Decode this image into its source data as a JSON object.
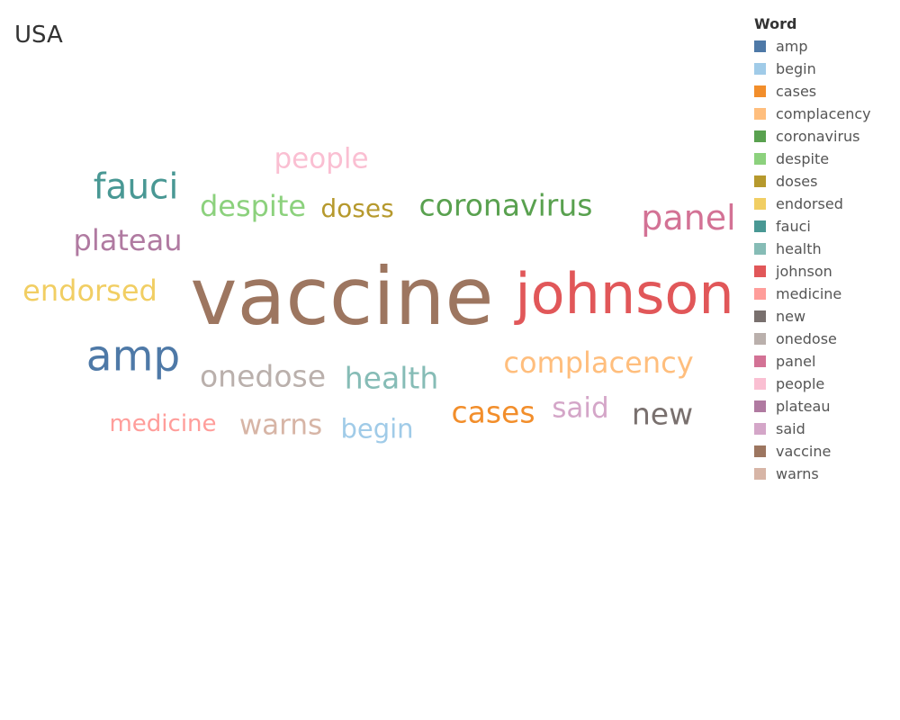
{
  "title": "USA",
  "legend": {
    "title": "Word"
  },
  "chart_data": {
    "type": "wordcloud",
    "title": "USA",
    "legend_title": "Word",
    "legend_placement": "right",
    "words": [
      {
        "text": "amp",
        "weight": 53,
        "color": "#4e79a7"
      },
      {
        "text": "begin",
        "weight": 33,
        "color": "#a0cbe8"
      },
      {
        "text": "cases",
        "weight": 37,
        "color": "#f28e2b"
      },
      {
        "text": "complacency",
        "weight": 36,
        "color": "#ffbe7d"
      },
      {
        "text": "coronavirus",
        "weight": 38,
        "color": "#59a14f"
      },
      {
        "text": "despite",
        "weight": 36,
        "color": "#8cd17d"
      },
      {
        "text": "doses",
        "weight": 32,
        "color": "#b6992d"
      },
      {
        "text": "endorsed",
        "weight": 36,
        "color": "#f1ce63"
      },
      {
        "text": "fauci",
        "weight": 44,
        "color": "#499894"
      },
      {
        "text": "health",
        "weight": 37,
        "color": "#86bcb6"
      },
      {
        "text": "johnson",
        "weight": 70,
        "color": "#e15759"
      },
      {
        "text": "medicine",
        "weight": 30,
        "color": "#ff9d9a"
      },
      {
        "text": "new",
        "weight": 38,
        "color": "#79706e"
      },
      {
        "text": "onedose",
        "weight": 37,
        "color": "#bab0ac"
      },
      {
        "text": "panel",
        "weight": 43,
        "color": "#d37295"
      },
      {
        "text": "people",
        "weight": 35,
        "color": "#fabfd2"
      },
      {
        "text": "plateau",
        "weight": 36,
        "color": "#b07aa1"
      },
      {
        "text": "said",
        "weight": 35,
        "color": "#d4a6c8"
      },
      {
        "text": "vaccine",
        "weight": 100,
        "color": "#9d7660"
      },
      {
        "text": "warns",
        "weight": 35,
        "color": "#d7b5a6"
      }
    ]
  }
}
